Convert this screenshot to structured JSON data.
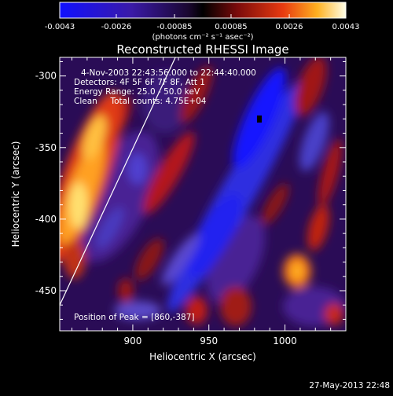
{
  "colorbar": {
    "ticks": [
      "-0.0043",
      "-0.0026",
      "-0.00085",
      "0.00085",
      "0.0026",
      "0.0043"
    ],
    "units": "(photons cm⁻² s⁻¹ asec⁻²)",
    "range": [
      -0.0043,
      0.0043
    ]
  },
  "chart_data": {
    "type": "heatmap",
    "title": "Reconstructed RHESSI Image",
    "xlabel": "Heliocentric X (arcsec)",
    "ylabel": "Heliocentric Y (arcsec)",
    "xlim": [
      852,
      1040
    ],
    "ylim": [
      -478,
      -287
    ],
    "xticks": [
      "900",
      "950",
      "1000"
    ],
    "yticks": [
      "-300",
      "-350",
      "-400",
      "-450"
    ],
    "xtick_values": [
      900,
      950,
      1000
    ],
    "ytick_values": [
      -300,
      -350,
      -400,
      -450
    ],
    "header_lines": [
      "4-Nov-2003 22:43:56.000 to 22:44:40.000",
      "Detectors: 4F 5F 6F 7F 8F, Att 1",
      "Energy Range: 25.0 - 50.0 keV",
      "Clean     Total counts: 4.75E+04"
    ],
    "peak_label": "Position of Peak = [860,-387]",
    "peak": [
      860,
      -387
    ],
    "limb_line": [
      [
        852,
        -460
      ],
      [
        928,
        -287
      ]
    ],
    "value_range": [
      -0.0043,
      0.0043
    ]
  },
  "timestamp": "27-May-2013 22:48"
}
